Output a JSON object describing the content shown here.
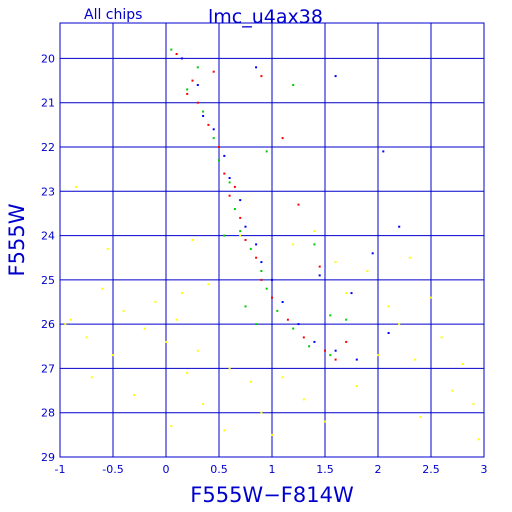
{
  "chart_data": {
    "type": "scatter",
    "title": "lmc_u4ax38",
    "subtitle": "All chips",
    "xlabel": "F555W−F814W",
    "ylabel": "F555W",
    "xlim": [
      -1,
      3
    ],
    "ylim": [
      29,
      19.2
    ],
    "y_inverted": true,
    "grid": true,
    "xticks": [
      -1,
      -0.5,
      0,
      0.5,
      1,
      1.5,
      2,
      2.5,
      3
    ],
    "xtick_labels": [
      "-1",
      "-0.5",
      "0",
      "0.5",
      "1",
      "1.5",
      "2",
      "2.5",
      "3"
    ],
    "yticks": [
      20,
      21,
      22,
      23,
      24,
      25,
      26,
      27,
      28,
      29
    ],
    "ytick_labels": [
      "20",
      "21",
      "22",
      "23",
      "24",
      "25",
      "26",
      "27",
      "28",
      "29"
    ],
    "series": [
      {
        "color": "#ffff00",
        "description": "field stars spread across the diagram, concentrated at F555W 24–28.5",
        "points": [
          [
            -0.85,
            22.9
          ],
          [
            -0.55,
            24.3
          ],
          [
            -0.6,
            25.2
          ],
          [
            -0.9,
            25.9
          ],
          [
            -0.75,
            26.3
          ],
          [
            -0.4,
            25.7
          ],
          [
            -0.2,
            26.1
          ],
          [
            -0.5,
            26.7
          ],
          [
            -0.3,
            27.6
          ],
          [
            0.0,
            26.4
          ],
          [
            0.1,
            25.9
          ],
          [
            0.2,
            27.1
          ],
          [
            0.05,
            28.3
          ],
          [
            0.3,
            26.6
          ],
          [
            0.25,
            24.1
          ],
          [
            -0.1,
            25.5
          ],
          [
            0.4,
            25.1
          ],
          [
            0.35,
            27.8
          ],
          [
            0.6,
            27.0
          ],
          [
            0.55,
            28.4
          ],
          [
            0.8,
            27.3
          ],
          [
            0.9,
            28.0
          ],
          [
            1.1,
            27.2
          ],
          [
            1.3,
            27.7
          ],
          [
            1.2,
            24.2
          ],
          [
            1.4,
            23.9
          ],
          [
            1.6,
            24.6
          ],
          [
            1.7,
            25.3
          ],
          [
            1.9,
            24.8
          ],
          [
            2.0,
            26.7
          ],
          [
            2.1,
            25.6
          ],
          [
            2.2,
            26.0
          ],
          [
            2.35,
            26.8
          ],
          [
            2.5,
            25.4
          ],
          [
            2.6,
            26.3
          ],
          [
            2.7,
            27.5
          ],
          [
            2.8,
            26.9
          ],
          [
            2.9,
            27.8
          ],
          [
            2.95,
            28.6
          ],
          [
            2.4,
            28.1
          ],
          [
            1.8,
            27.4
          ],
          [
            1.5,
            28.2
          ],
          [
            1.0,
            28.5
          ],
          [
            0.7,
            24.0
          ],
          [
            -0.7,
            27.2
          ],
          [
            -0.95,
            26.0
          ],
          [
            0.15,
            25.3
          ],
          [
            2.3,
            24.5
          ]
        ]
      },
      {
        "color": "#ff0000",
        "description": "main sequence and upper sequence stars, F555W 19.8–26.9",
        "points": [
          [
            0.1,
            19.9
          ],
          [
            0.25,
            20.5
          ],
          [
            0.3,
            21.0
          ],
          [
            0.4,
            21.5
          ],
          [
            0.5,
            22.0
          ],
          [
            0.55,
            22.6
          ],
          [
            0.6,
            23.1
          ],
          [
            0.7,
            23.6
          ],
          [
            0.75,
            24.1
          ],
          [
            0.85,
            24.5
          ],
          [
            0.9,
            25.0
          ],
          [
            1.0,
            25.4
          ],
          [
            1.15,
            25.9
          ],
          [
            1.3,
            26.3
          ],
          [
            1.5,
            26.6
          ],
          [
            1.6,
            26.8
          ],
          [
            0.9,
            20.4
          ],
          [
            1.1,
            21.8
          ],
          [
            1.25,
            23.3
          ],
          [
            1.45,
            24.7
          ],
          [
            0.45,
            20.3
          ],
          [
            0.2,
            20.8
          ],
          [
            0.65,
            22.9
          ],
          [
            1.7,
            26.4
          ]
        ]
      },
      {
        "color": "#00cc00",
        "description": "main sequence stars, F555W 19.7–26.9",
        "points": [
          [
            0.05,
            19.8
          ],
          [
            0.2,
            20.7
          ],
          [
            0.35,
            21.2
          ],
          [
            0.45,
            21.8
          ],
          [
            0.5,
            22.3
          ],
          [
            0.6,
            22.8
          ],
          [
            0.65,
            23.4
          ],
          [
            0.7,
            23.9
          ],
          [
            0.8,
            24.3
          ],
          [
            0.9,
            24.8
          ],
          [
            0.95,
            25.2
          ],
          [
            1.05,
            25.7
          ],
          [
            1.2,
            26.1
          ],
          [
            1.35,
            26.5
          ],
          [
            1.55,
            26.7
          ],
          [
            0.55,
            24.0
          ],
          [
            0.75,
            25.6
          ],
          [
            0.85,
            26.0
          ],
          [
            1.4,
            24.2
          ],
          [
            1.55,
            25.8
          ],
          [
            0.3,
            20.2
          ],
          [
            1.7,
            25.9
          ],
          [
            0.95,
            22.1
          ],
          [
            1.2,
            20.6
          ]
        ]
      },
      {
        "color": "#0000ff",
        "description": "main sequence stars, F555W 19.9–26.9",
        "points": [
          [
            0.15,
            20.0
          ],
          [
            0.3,
            20.6
          ],
          [
            0.35,
            21.3
          ],
          [
            0.45,
            21.6
          ],
          [
            0.55,
            22.2
          ],
          [
            0.6,
            22.7
          ],
          [
            0.7,
            23.2
          ],
          [
            0.75,
            23.8
          ],
          [
            0.85,
            24.2
          ],
          [
            0.9,
            24.6
          ],
          [
            1.0,
            25.0
          ],
          [
            1.1,
            25.5
          ],
          [
            1.25,
            26.0
          ],
          [
            1.4,
            26.4
          ],
          [
            1.6,
            26.6
          ],
          [
            1.8,
            26.8
          ],
          [
            2.05,
            22.1
          ],
          [
            1.95,
            24.4
          ],
          [
            1.6,
            20.4
          ],
          [
            1.45,
            24.9
          ],
          [
            1.75,
            25.3
          ],
          [
            2.1,
            26.2
          ],
          [
            0.85,
            20.2
          ],
          [
            2.2,
            23.8
          ]
        ]
      }
    ]
  }
}
